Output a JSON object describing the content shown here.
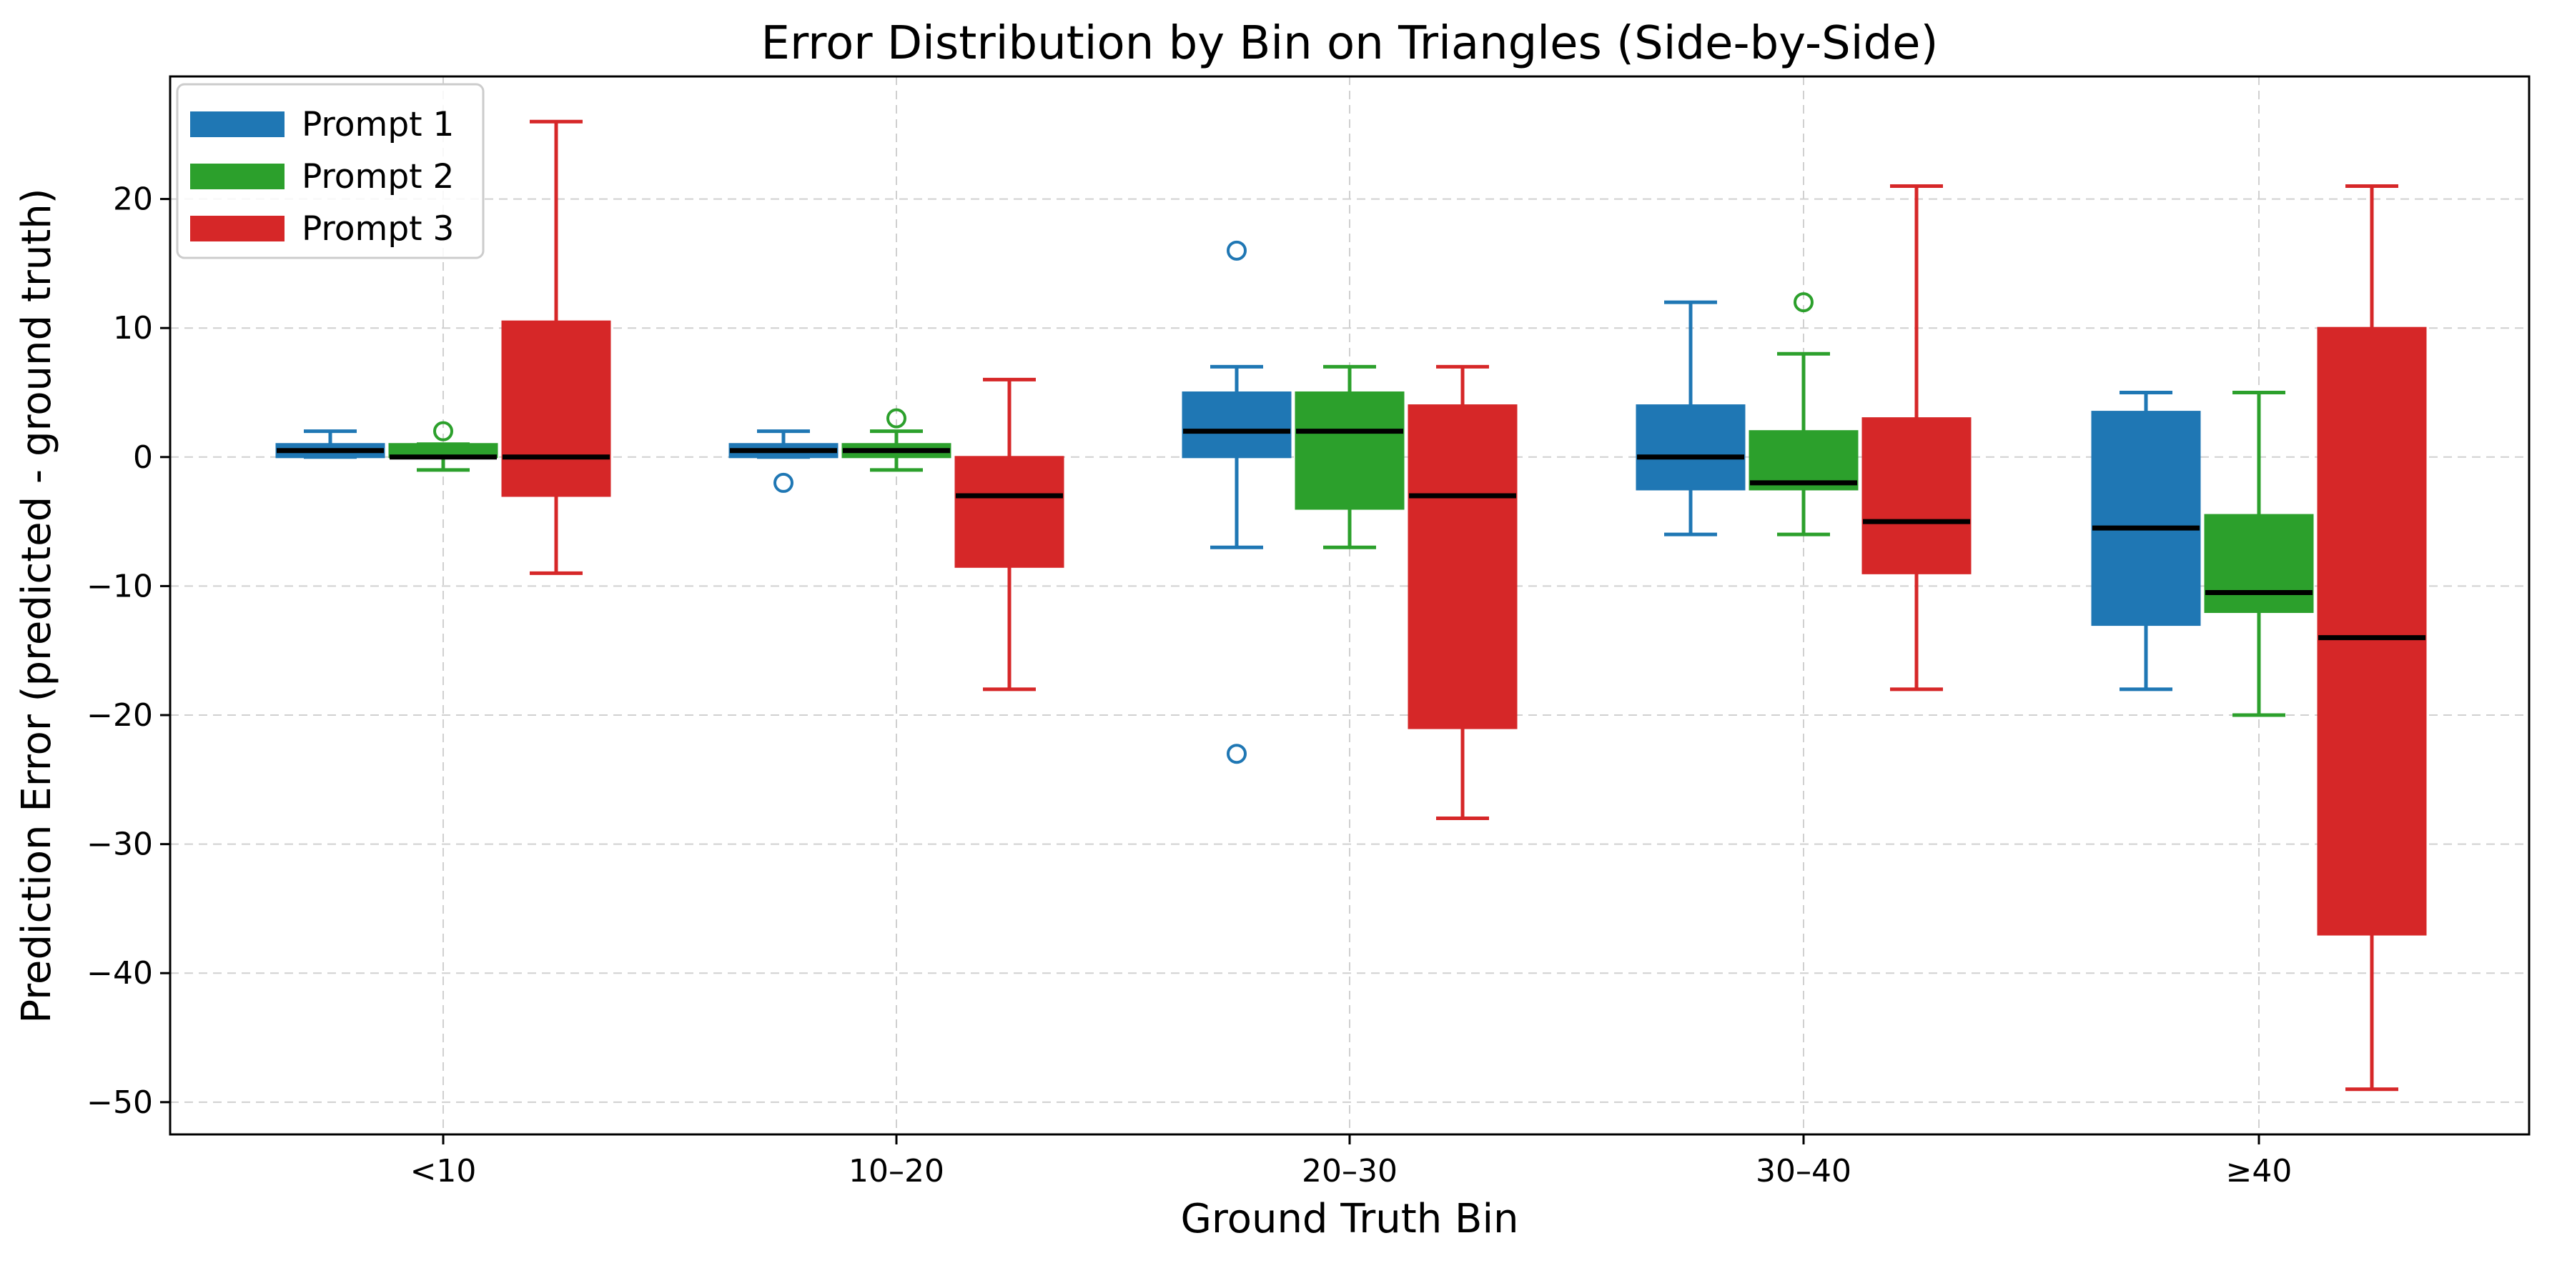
{
  "chart_data": {
    "type": "box",
    "title": "Error Distribution by Bin on Triangles (Side-by-Side)",
    "xlabel": "Ground Truth Bin",
    "ylabel": "Prediction Error (predicted - ground truth)",
    "categories": [
      "<10",
      "10–20",
      "20–30",
      "30–40",
      "≥40"
    ],
    "ylim": [
      -52.5,
      29.5
    ],
    "yticks": [
      -50,
      -40,
      -30,
      -20,
      -10,
      0,
      10,
      20
    ],
    "grid": true,
    "legend_position": "top-left",
    "series": [
      {
        "name": "Prompt 1",
        "color": "#1f77b4",
        "boxes": [
          {
            "whisker_low": 0,
            "q1": 0,
            "median": 0.5,
            "q3": 1,
            "whisker_high": 2,
            "outliers": []
          },
          {
            "whisker_low": 0,
            "q1": 0,
            "median": 0.5,
            "q3": 1,
            "whisker_high": 2,
            "outliers": [
              -2
            ]
          },
          {
            "whisker_low": -7,
            "q1": 0,
            "median": 2,
            "q3": 5,
            "whisker_high": 7,
            "outliers": [
              16,
              -23
            ]
          },
          {
            "whisker_low": -6,
            "q1": -2.5,
            "median": 0,
            "q3": 4,
            "whisker_high": 12,
            "outliers": []
          },
          {
            "whisker_low": -18,
            "q1": -13,
            "median": -5.5,
            "q3": 3.5,
            "whisker_high": 5,
            "outliers": []
          }
        ]
      },
      {
        "name": "Prompt 2",
        "color": "#2ca02c",
        "boxes": [
          {
            "whisker_low": -1,
            "q1": 0,
            "median": 0,
            "q3": 1,
            "whisker_high": 1,
            "outliers": [
              2
            ]
          },
          {
            "whisker_low": -1,
            "q1": 0,
            "median": 0.5,
            "q3": 1,
            "whisker_high": 2,
            "outliers": [
              3
            ]
          },
          {
            "whisker_low": -7,
            "q1": -4,
            "median": 2,
            "q3": 5,
            "whisker_high": 7,
            "outliers": []
          },
          {
            "whisker_low": -6,
            "q1": -2.5,
            "median": -2,
            "q3": 2,
            "whisker_high": 8,
            "outliers": [
              12
            ]
          },
          {
            "whisker_low": -20,
            "q1": -12,
            "median": -10.5,
            "q3": -4.5,
            "whisker_high": 5,
            "outliers": []
          }
        ]
      },
      {
        "name": "Prompt 3",
        "color": "#d62728",
        "boxes": [
          {
            "whisker_low": -9,
            "q1": -3,
            "median": 0,
            "q3": 10.5,
            "whisker_high": 26,
            "outliers": []
          },
          {
            "whisker_low": -18,
            "q1": -8.5,
            "median": -3,
            "q3": 0,
            "whisker_high": 6,
            "outliers": []
          },
          {
            "whisker_low": -28,
            "q1": -21,
            "median": -3,
            "q3": 4,
            "whisker_high": 7,
            "outliers": []
          },
          {
            "whisker_low": -18,
            "q1": -9,
            "median": -5,
            "q3": 3,
            "whisker_high": 21,
            "outliers": []
          },
          {
            "whisker_low": -49,
            "q1": -37,
            "median": -14,
            "q3": 10,
            "whisker_high": 21,
            "outliers": []
          }
        ]
      }
    ]
  }
}
